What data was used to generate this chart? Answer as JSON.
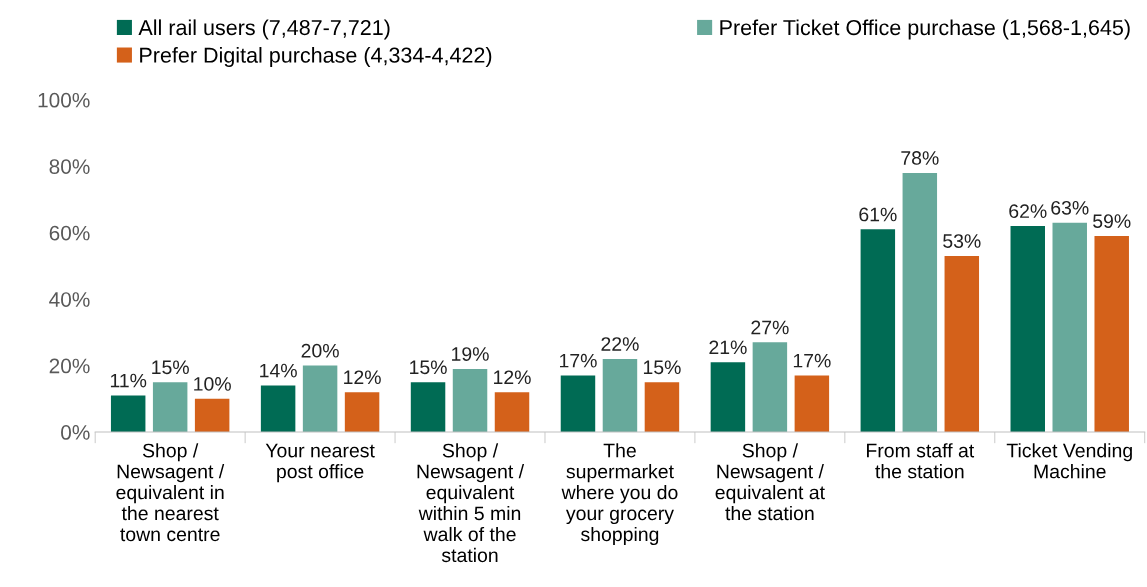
{
  "chart_data": {
    "type": "bar",
    "categories": [
      "Shop /\nNewsagent /\nequivalent in\nthe nearest\ntown centre",
      "Your nearest\npost office",
      "Shop /\nNewsagent /\nequivalent\nwithin 5 min\nwalk of the\nstation",
      "The\nsupermarket\nwhere you do\nyour grocery\nshopping",
      "Shop /\nNewsagent /\nequivalent at\nthe station",
      "From staff at\nthe station",
      "Ticket Vending\nMachine"
    ],
    "series": [
      {
        "name": "All rail users (7,487-7,721)",
        "color": "#006b54",
        "values": [
          11,
          14,
          15,
          17,
          21,
          61,
          62
        ]
      },
      {
        "name": "Prefer Ticket Office purchase (1,568-1,645)",
        "color": "#67a99b",
        "values": [
          15,
          20,
          19,
          22,
          27,
          78,
          63
        ]
      },
      {
        "name": "Prefer Digital purchase (4,334-4,422)",
        "color": "#d4611a",
        "values": [
          10,
          12,
          12,
          15,
          17,
          53,
          59
        ]
      }
    ],
    "ylim": [
      0,
      100
    ],
    "yticks": [
      {
        "value": 0,
        "label": "0%"
      },
      {
        "value": 20,
        "label": "20%"
      },
      {
        "value": 40,
        "label": "40%"
      },
      {
        "value": 60,
        "label": "60%"
      },
      {
        "value": 80,
        "label": "80%"
      },
      {
        "value": 100,
        "label": "100%"
      }
    ],
    "value_labels": [
      [
        "11%",
        "14%",
        "15%",
        "17%",
        "21%",
        "61%",
        "62%"
      ],
      [
        "15%",
        "20%",
        "19%",
        "22%",
        "27%",
        "78%",
        "63%"
      ],
      [
        "10%",
        "12%",
        "12%",
        "15%",
        "17%",
        "53%",
        "59%"
      ]
    ],
    "legend": "top"
  }
}
